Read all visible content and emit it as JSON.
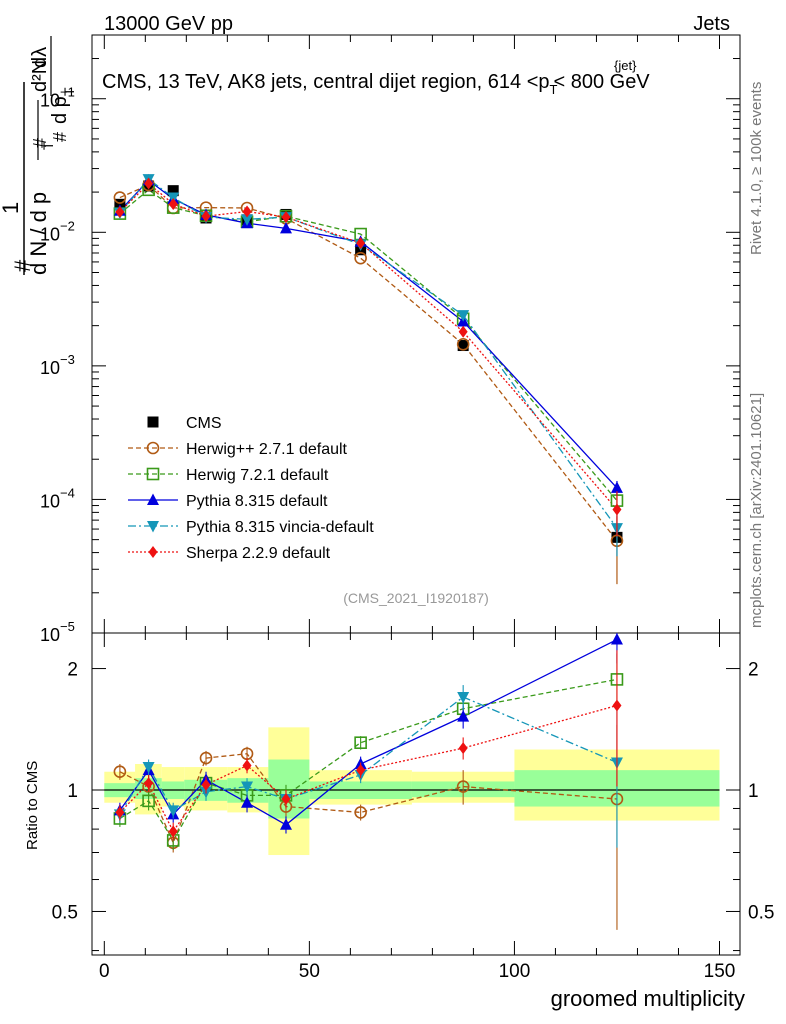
{
  "header": {
    "energy_label": "13000 GeV pp",
    "process_label": "Jets"
  },
  "side_labels": {
    "rivet": "Rivet 4.1.0, ≥ 100k events",
    "mcplots": "mcplots.cern.ch [arXiv:2401.10621]"
  },
  "chart_data": [
    {
      "type": "line",
      "name": "main",
      "title_parts": {
        "pre": "CMS, 13 TeV, AK8 jets, central dijet region, 614 <",
        "p": "p",
        "sub": "T",
        "sup": "{jet}",
        "post": "< 800 GeV"
      },
      "analysis_tag": "(CMS_2021_I1920187)",
      "yscale": "log",
      "ylim": [
        1e-05,
        0.3
      ],
      "xlim": [
        -3,
        155
      ],
      "ytick_labels": [
        {
          "value": 0.1,
          "base": "10",
          "exp": "−1"
        },
        {
          "value": 0.01,
          "base": "10",
          "exp": "−2"
        },
        {
          "value": 0.001,
          "base": "10",
          "exp": "−3"
        },
        {
          "value": 0.0001,
          "base": "10",
          "exp": "−4"
        },
        {
          "value": 1e-05,
          "base": "10",
          "exp": "−5"
        }
      ],
      "ylabel_parts": {
        "one": "1",
        "hash_top": "#",
        "denominator": "d N / d p",
        "den_sub": "T",
        "hash_left": "#",
        "num_d2": "d²N",
        "num_dp": "d p",
        "num_dp_sub": "T",
        "num_dl": "dλ"
      },
      "x_bins": [
        [
          0,
          7.5
        ],
        [
          7.5,
          14
        ],
        [
          14,
          19.5
        ],
        [
          19.5,
          30
        ],
        [
          30,
          40
        ],
        [
          40,
          50
        ],
        [
          50,
          75
        ],
        [
          75,
          100
        ],
        [
          100,
          150
        ]
      ],
      "x": [
        3.8,
        10.8,
        16.8,
        24.8,
        34.8,
        44.3,
        62.5,
        87.5,
        125
      ],
      "cms": {
        "name": "CMS",
        "values": [
          0.0162,
          0.0222,
          0.0205,
          0.0128,
          0.0124,
          0.0136,
          0.0074,
          0.00142,
          5.2e-05
        ]
      },
      "series": [
        {
          "name": "Herwig++ 2.7.1 default",
          "color": "#b05a14",
          "marker": "open-circle",
          "dash": "5,3",
          "values": [
            0.0182,
            0.0226,
            0.0152,
            0.0153,
            0.0152,
            0.0127,
            0.0064,
            0.00145,
            4.9e-05
          ]
        },
        {
          "name": "Herwig 7.2.1 default",
          "color": "#3a9a1a",
          "marker": "open-square",
          "dash": "5,3",
          "values": [
            0.0138,
            0.0208,
            0.0153,
            0.0133,
            0.012,
            0.0132,
            0.0097,
            0.00225,
            9.8e-05
          ]
        },
        {
          "name": "Pythia 8.315 default",
          "color": "#0000dd",
          "marker": "up-triangle",
          "dash": "",
          "values": [
            0.0145,
            0.0245,
            0.0178,
            0.0135,
            0.0117,
            0.0107,
            0.0085,
            0.00215,
            0.000122
          ]
        },
        {
          "name": "Pythia 8.315 vincia-default",
          "color": "#1596b8",
          "marker": "down-triangle",
          "dash": "8,3,2,3",
          "values": [
            0.014,
            0.025,
            0.0182,
            0.013,
            0.0125,
            0.013,
            0.0081,
            0.0024,
            6.1e-05
          ]
        },
        {
          "name": "Sherpa 2.2.9 default",
          "color": "#ee1111",
          "marker": "diamond",
          "dash": "2,2",
          "values": [
            0.0142,
            0.0232,
            0.0163,
            0.0132,
            0.0143,
            0.013,
            0.0083,
            0.0018,
            8.4e-05
          ]
        }
      ]
    },
    {
      "type": "line",
      "name": "ratio",
      "ylabel": "Ratio to CMS",
      "yscale": "log",
      "ylim": [
        0.39,
        2.45
      ],
      "xlim": [
        -3,
        155
      ],
      "ytick_labels": [
        {
          "value": 0.5,
          "label": "0.5"
        },
        {
          "value": 1,
          "label": "1"
        },
        {
          "value": 2,
          "label": "2"
        }
      ],
      "xtick_labels": [
        {
          "value": 0,
          "label": "0"
        },
        {
          "value": 50,
          "label": "50"
        },
        {
          "value": 100,
          "label": "100"
        },
        {
          "value": 150,
          "label": "150"
        }
      ],
      "xlabel": "groomed multiplicity",
      "uncertainty_bands": {
        "stat_color": "#99ff99",
        "total_color": "#ffff99",
        "stat": [
          [
            0.96,
            1.04
          ],
          [
            0.95,
            1.07
          ],
          [
            0.95,
            1.05
          ],
          [
            0.94,
            1.06
          ],
          [
            0.93,
            1.07
          ],
          [
            0.85,
            1.19
          ],
          [
            0.95,
            1.05
          ],
          [
            0.96,
            1.05
          ],
          [
            0.91,
            1.12
          ]
        ],
        "total": [
          [
            0.93,
            1.11
          ],
          [
            0.87,
            1.16
          ],
          [
            0.91,
            1.14
          ],
          [
            0.89,
            1.14
          ],
          [
            0.88,
            1.14
          ],
          [
            0.69,
            1.43
          ],
          [
            0.92,
            1.12
          ],
          [
            0.93,
            1.11
          ],
          [
            0.84,
            1.26
          ]
        ]
      },
      "series": [
        {
          "name": "Herwig++ 2.7.1 default",
          "values": [
            1.11,
            1.02,
            0.74,
            1.2,
            1.23,
            0.91,
            0.88,
            1.02,
            0.95
          ],
          "err": [
            0.05,
            0.06,
            0.04,
            0.05,
            0.05,
            0.06,
            0.04,
            0.1,
            0.5
          ]
        },
        {
          "name": "Herwig 7.2.1 default",
          "values": [
            0.85,
            0.94,
            0.75,
            1.04,
            0.97,
            0.97,
            1.31,
            1.59,
            1.88
          ],
          "err": [
            0.04,
            0.05,
            0.04,
            0.05,
            0.05,
            0.06,
            0.05,
            0.1,
            0.3
          ]
        },
        {
          "name": "Pythia 8.315 default",
          "values": [
            0.89,
            1.12,
            0.87,
            1.06,
            0.93,
            0.82,
            1.16,
            1.52,
            2.36
          ],
          "err": [
            0.04,
            0.05,
            0.04,
            0.05,
            0.05,
            0.04,
            0.05,
            0.1,
            0.3
          ]
        },
        {
          "name": "Pythia 8.315 vincia-default",
          "values": [
            0.87,
            1.14,
            0.89,
            0.99,
            1.02,
            0.95,
            1.09,
            1.7,
            1.17
          ],
          "err": [
            0.04,
            0.05,
            0.04,
            0.05,
            0.05,
            0.05,
            0.05,
            0.12,
            0.45
          ]
        },
        {
          "name": "Sherpa 2.2.9 default",
          "values": [
            0.88,
            1.04,
            0.79,
            1.03,
            1.15,
            0.95,
            1.12,
            1.27,
            1.62
          ],
          "err": [
            0.04,
            0.05,
            0.04,
            0.05,
            0.05,
            0.05,
            0.05,
            0.08,
            0.6
          ]
        }
      ]
    }
  ]
}
